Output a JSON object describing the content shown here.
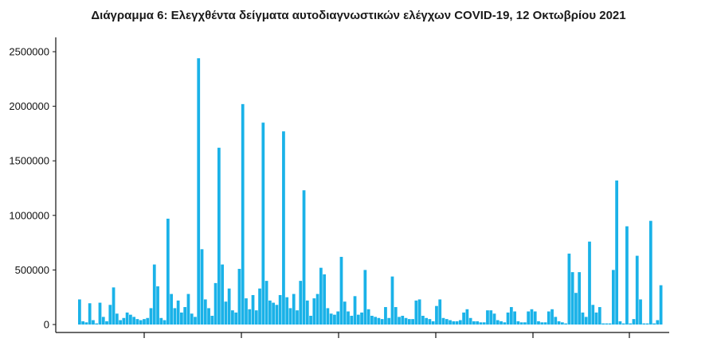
{
  "chart_data": {
    "type": "bar",
    "title": "Διάγραμμα 6: Ελεγχθέντα δείγματα αυτοδιαγνωστικών ελέγχων COVID-19, 12 Οκτωβρίου 2021",
    "xlabel": "",
    "ylabel": "",
    "ylim": [
      0,
      2500000
    ],
    "yticks": [
      0,
      500000,
      1000000,
      1500000,
      2000000,
      2500000
    ],
    "ytick_labels": [
      "0",
      "500000",
      "1000000",
      "1500000",
      "2000000",
      "2500000"
    ],
    "grid": false,
    "bar_color": "#1AB2E8",
    "values": [
      230000,
      30000,
      20000,
      195000,
      40000,
      10000,
      200000,
      70000,
      30000,
      180000,
      340000,
      100000,
      40000,
      60000,
      110000,
      90000,
      70000,
      50000,
      40000,
      50000,
      60000,
      150000,
      550000,
      350000,
      60000,
      40000,
      970000,
      280000,
      150000,
      220000,
      110000,
      160000,
      280000,
      100000,
      70000,
      2440000,
      690000,
      230000,
      150000,
      80000,
      380000,
      1620000,
      550000,
      210000,
      330000,
      130000,
      110000,
      510000,
      2020000,
      240000,
      140000,
      270000,
      130000,
      330000,
      1850000,
      400000,
      220000,
      200000,
      180000,
      270000,
      1770000,
      250000,
      150000,
      280000,
      130000,
      400000,
      1230000,
      220000,
      80000,
      240000,
      280000,
      520000,
      460000,
      150000,
      100000,
      90000,
      120000,
      620000,
      210000,
      120000,
      80000,
      260000,
      90000,
      110000,
      500000,
      140000,
      80000,
      70000,
      60000,
      50000,
      160000,
      60000,
      440000,
      160000,
      70000,
      80000,
      60000,
      50000,
      50000,
      220000,
      230000,
      80000,
      60000,
      50000,
      30000,
      170000,
      230000,
      60000,
      50000,
      40000,
      30000,
      30000,
      40000,
      110000,
      140000,
      60000,
      30000,
      30000,
      20000,
      20000,
      130000,
      130000,
      100000,
      40000,
      30000,
      20000,
      110000,
      160000,
      120000,
      30000,
      20000,
      20000,
      120000,
      140000,
      120000,
      30000,
      20000,
      20000,
      120000,
      140000,
      70000,
      30000,
      20000,
      10000,
      650000,
      480000,
      290000,
      480000,
      110000,
      70000,
      760000,
      180000,
      110000,
      160000,
      10000,
      10000,
      10000,
      500000,
      1320000,
      30000,
      10000,
      900000,
      10000,
      50000,
      630000,
      230000,
      10000,
      10000,
      950000,
      10000,
      40000,
      360000
    ]
  }
}
